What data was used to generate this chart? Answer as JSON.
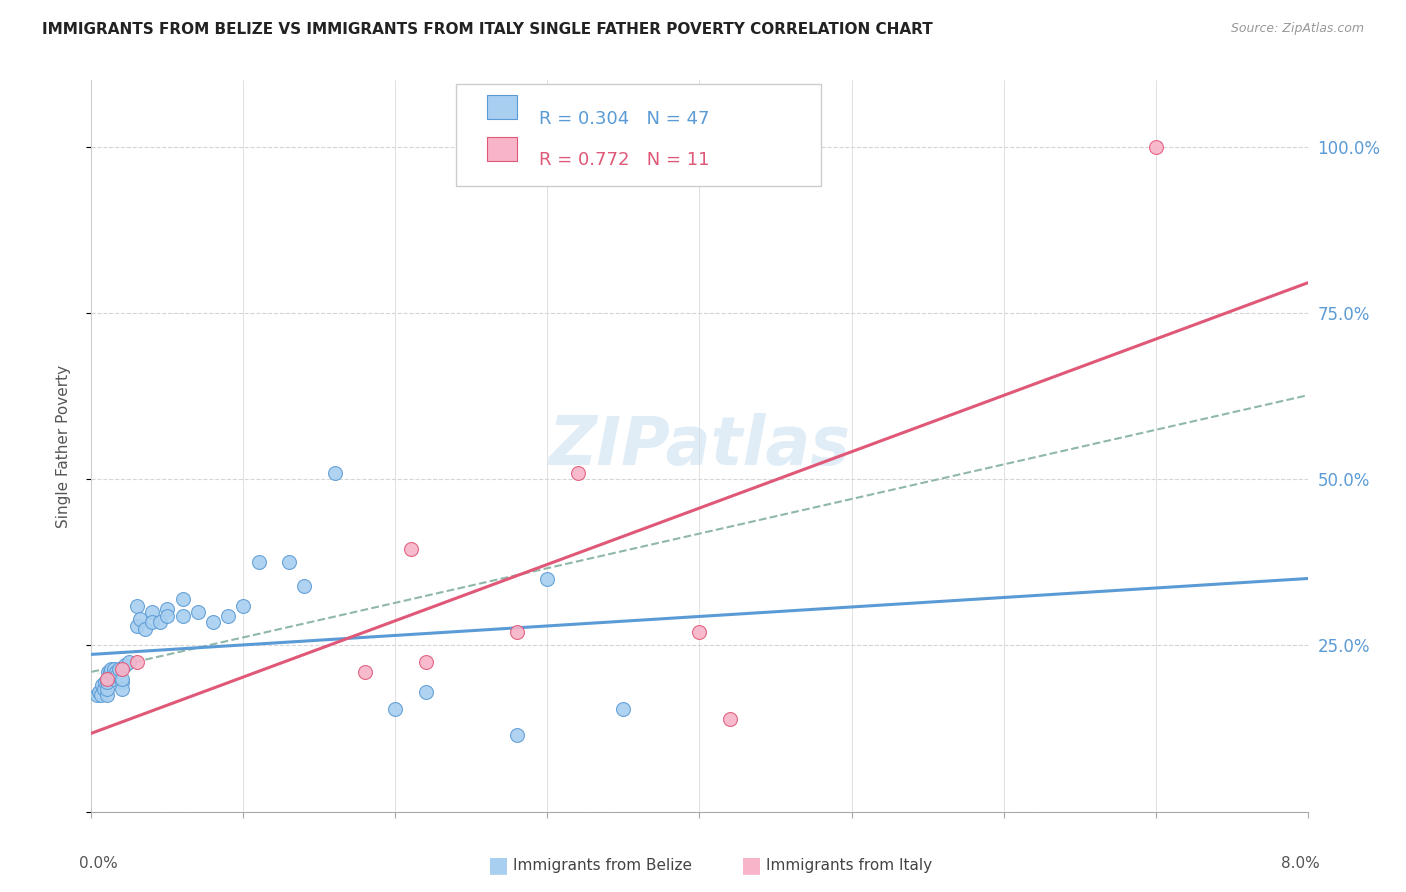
{
  "title": "IMMIGRANTS FROM BELIZE VS IMMIGRANTS FROM ITALY SINGLE FATHER POVERTY CORRELATION CHART",
  "source": "Source: ZipAtlas.com",
  "ylabel": "Single Father Poverty",
  "legend_belize": "Immigrants from Belize",
  "legend_italy": "Immigrants from Italy",
  "R_belize": 0.304,
  "N_belize": 47,
  "R_italy": 0.772,
  "N_italy": 11,
  "color_belize_fill": "#a8cff0",
  "color_belize_edge": "#5b9bd5",
  "color_italy_fill": "#f8b4c8",
  "color_italy_edge": "#e05878",
  "color_belize_line": "#5b9bd5",
  "color_italy_line": "#e05878",
  "color_dash_line": "#90b8a8",
  "belize_x": [
    0.0004,
    0.0005,
    0.0006,
    0.0007,
    0.0008,
    0.0009,
    0.001,
    0.001,
    0.001,
    0.0011,
    0.0012,
    0.0013,
    0.0014,
    0.0015,
    0.0015,
    0.0016,
    0.0017,
    0.0018,
    0.002,
    0.002,
    0.002,
    0.0022,
    0.0025,
    0.003,
    0.003,
    0.0032,
    0.0035,
    0.004,
    0.004,
    0.0045,
    0.005,
    0.005,
    0.006,
    0.006,
    0.007,
    0.008,
    0.009,
    0.01,
    0.011,
    0.013,
    0.014,
    0.016,
    0.02,
    0.022,
    0.028,
    0.03,
    0.035
  ],
  "belize_y": [
    0.175,
    0.18,
    0.175,
    0.19,
    0.185,
    0.195,
    0.175,
    0.185,
    0.195,
    0.21,
    0.21,
    0.215,
    0.205,
    0.215,
    0.2,
    0.21,
    0.205,
    0.215,
    0.195,
    0.185,
    0.2,
    0.22,
    0.225,
    0.28,
    0.31,
    0.29,
    0.275,
    0.3,
    0.285,
    0.285,
    0.305,
    0.295,
    0.32,
    0.295,
    0.3,
    0.285,
    0.295,
    0.31,
    0.375,
    0.375,
    0.34,
    0.51,
    0.155,
    0.18,
    0.115,
    0.35,
    0.155
  ],
  "italy_x": [
    0.001,
    0.002,
    0.003,
    0.018,
    0.021,
    0.022,
    0.028,
    0.032,
    0.04,
    0.042,
    0.07
  ],
  "italy_y": [
    0.2,
    0.215,
    0.225,
    0.21,
    0.395,
    0.225,
    0.27,
    0.51,
    0.27,
    0.14,
    1.0
  ],
  "xlim": [
    0.0,
    0.08
  ],
  "ylim": [
    0.0,
    1.1
  ],
  "yticks": [
    0.0,
    0.25,
    0.5,
    0.75,
    1.0
  ],
  "yticklabels": [
    "",
    "25.0%",
    "50.0%",
    "75.0%",
    "100.0%"
  ],
  "xticks": [
    0.0,
    0.01,
    0.02,
    0.03,
    0.04,
    0.05,
    0.06,
    0.07,
    0.08
  ]
}
